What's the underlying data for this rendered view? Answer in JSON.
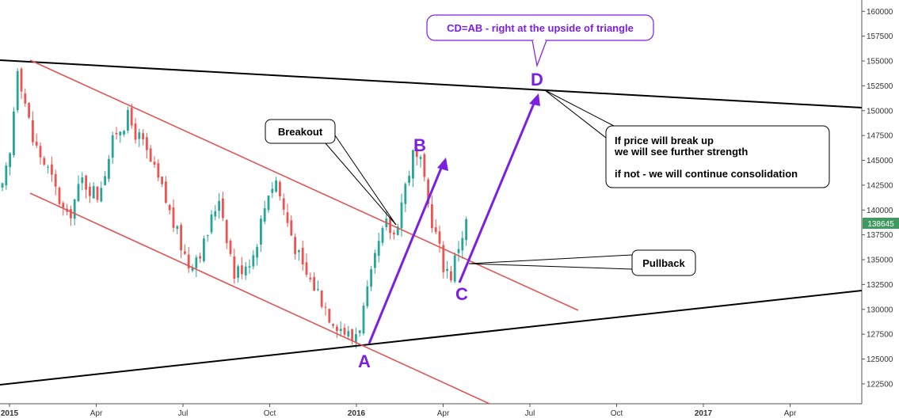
{
  "chart_data": {
    "type": "candlestick",
    "x_ticks": [
      "2015",
      "Apr",
      "Jul",
      "Oct",
      "2016",
      "Apr",
      "Jul",
      "Oct",
      "2017",
      "Apr"
    ],
    "y_ticks": [
      "160000",
      "157500",
      "155000",
      "152500",
      "150000",
      "147500",
      "145000",
      "142500",
      "140000",
      "137500",
      "135000",
      "132500",
      "130000",
      "127500",
      "125000",
      "122500"
    ],
    "ylim": [
      120500,
      160500
    ],
    "last_price": "138645",
    "path": [
      [
        0,
        142000
      ],
      [
        2,
        145500
      ],
      [
        4,
        154700
      ],
      [
        8,
        147000
      ],
      [
        12,
        144000
      ],
      [
        17,
        139000
      ],
      [
        21,
        143000
      ],
      [
        25,
        141500
      ],
      [
        30,
        148000
      ],
      [
        33,
        149200
      ],
      [
        37,
        146500
      ],
      [
        42,
        142000
      ],
      [
        46,
        137500
      ],
      [
        49,
        134500
      ],
      [
        53,
        136500
      ],
      [
        57,
        141500
      ],
      [
        61,
        133500
      ],
      [
        66,
        135500
      ],
      [
        70,
        142000
      ],
      [
        72,
        143000
      ],
      [
        74,
        140000
      ],
      [
        79,
        134000
      ],
      [
        83,
        131800
      ],
      [
        86,
        129500
      ],
      [
        89,
        128200
      ],
      [
        92,
        127000
      ],
      [
        94,
        128500
      ],
      [
        96,
        131500
      ],
      [
        99,
        136500
      ],
      [
        101,
        138500
      ],
      [
        103,
        137500
      ],
      [
        106,
        142500
      ],
      [
        108,
        145500
      ],
      [
        110,
        144500
      ],
      [
        112,
        140500
      ],
      [
        114,
        137500
      ],
      [
        116,
        134500
      ],
      [
        118,
        133500
      ],
      [
        120,
        136500
      ],
      [
        122,
        138700
      ]
    ],
    "annotations": {
      "title": "CD=AB - right at the upside of triangle",
      "breakout": "Breakout",
      "pullback": "Pullback",
      "note_lines": [
        "If price will break up",
        "we will see further strength",
        "if not - we will continue consolidation"
      ],
      "points": [
        "A",
        "B",
        "C",
        "D"
      ]
    },
    "colors": {
      "up": "#26a69a",
      "down": "#ef5350",
      "channel": "#e05555",
      "triangle": "#000000",
      "projection": "#7b1fe0",
      "price_badge": "#3f9a5f"
    },
    "grid": false,
    "legend": "none"
  }
}
